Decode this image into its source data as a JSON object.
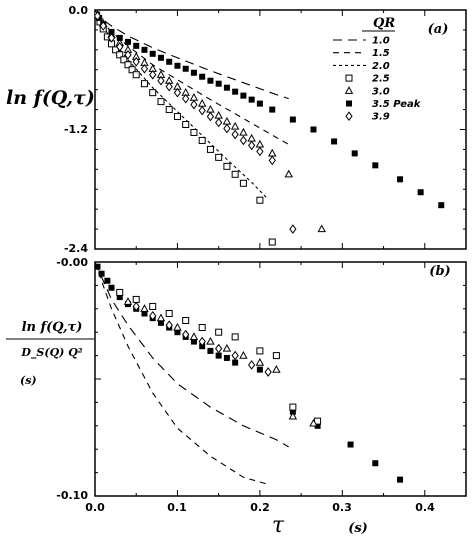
{
  "figure": {
    "xlabel": "τ",
    "xunit": "(s)",
    "x_ticks": [
      "0.0",
      "0.1",
      "0.2",
      "0.3",
      "0.4"
    ],
    "xlim": [
      0,
      0.45
    ]
  },
  "chart_data": [
    {
      "type": "scatter",
      "panel": "(a)",
      "ylabel": "ln f(Q,τ)",
      "ylim": [
        -2.4,
        0.0
      ],
      "y_ticks": [
        "0.0",
        "-1.2",
        "-2.4"
      ],
      "legend_title": "QR",
      "legend_position": "top-right",
      "series": [
        {
          "name": "1.0",
          "marker": "dash-long",
          "x": [
            0,
            0.005,
            0.01,
            0.02,
            0.04,
            0.07,
            0.1,
            0.14,
            0.18,
            0.22,
            0.235
          ],
          "y": [
            0,
            -0.06,
            -0.1,
            -0.16,
            -0.26,
            -0.38,
            -0.48,
            -0.61,
            -0.73,
            -0.85,
            -0.89
          ]
        },
        {
          "name": "1.5",
          "marker": "dash-med",
          "x": [
            0,
            0.005,
            0.01,
            0.02,
            0.04,
            0.07,
            0.1,
            0.14,
            0.18,
            0.22,
            0.235
          ],
          "y": [
            0,
            -0.08,
            -0.13,
            -0.22,
            -0.36,
            -0.55,
            -0.7,
            -0.9,
            -1.09,
            -1.28,
            -1.35
          ]
        },
        {
          "name": "2.0",
          "marker": "dash-short",
          "x": [
            0,
            0.005,
            0.01,
            0.02,
            0.04,
            0.07,
            0.1,
            0.13,
            0.16,
            0.19,
            0.21
          ],
          "y": [
            0,
            -0.1,
            -0.17,
            -0.29,
            -0.5,
            -0.78,
            -1.02,
            -1.26,
            -1.5,
            -1.73,
            -1.9
          ]
        },
        {
          "name": "2.5",
          "marker": "open-square",
          "x": [
            0.002,
            0.006,
            0.01,
            0.015,
            0.02,
            0.025,
            0.03,
            0.035,
            0.04,
            0.045,
            0.05,
            0.06,
            0.07,
            0.08,
            0.09,
            0.1,
            0.11,
            0.12,
            0.13,
            0.14,
            0.15,
            0.16,
            0.17,
            0.18,
            0.2,
            0.215
          ],
          "y": [
            -0.05,
            -0.12,
            -0.19,
            -0.27,
            -0.34,
            -0.4,
            -0.45,
            -0.5,
            -0.55,
            -0.6,
            -0.65,
            -0.74,
            -0.83,
            -0.92,
            -1.0,
            -1.07,
            -1.15,
            -1.23,
            -1.31,
            -1.4,
            -1.48,
            -1.57,
            -1.65,
            -1.74,
            -1.91,
            -2.33
          ]
        },
        {
          "name": "3.0",
          "marker": "open-triangle",
          "x": [
            0.003,
            0.01,
            0.02,
            0.03,
            0.04,
            0.05,
            0.06,
            0.07,
            0.08,
            0.09,
            0.1,
            0.11,
            0.12,
            0.13,
            0.14,
            0.15,
            0.16,
            0.17,
            0.18,
            0.19,
            0.2,
            0.215,
            0.235,
            0.275
          ],
          "y": [
            -0.05,
            -0.14,
            -0.25,
            -0.33,
            -0.4,
            -0.47,
            -0.53,
            -0.59,
            -0.65,
            -0.71,
            -0.77,
            -0.83,
            -0.88,
            -0.94,
            -1.0,
            -1.06,
            -1.12,
            -1.17,
            -1.23,
            -1.29,
            -1.35,
            -1.44,
            -1.65,
            -2.2
          ]
        },
        {
          "name": "3.5 Peak",
          "marker": "filled-square",
          "x": [
            0.005,
            0.01,
            0.02,
            0.03,
            0.04,
            0.05,
            0.06,
            0.07,
            0.08,
            0.09,
            0.1,
            0.11,
            0.12,
            0.13,
            0.14,
            0.15,
            0.16,
            0.17,
            0.18,
            0.19,
            0.2,
            0.215,
            0.24,
            0.265,
            0.29,
            0.315,
            0.34,
            0.37,
            0.395,
            0.42
          ],
          "y": [
            -0.08,
            -0.14,
            -0.22,
            -0.28,
            -0.32,
            -0.36,
            -0.4,
            -0.44,
            -0.48,
            -0.52,
            -0.56,
            -0.59,
            -0.63,
            -0.67,
            -0.71,
            -0.74,
            -0.78,
            -0.82,
            -0.86,
            -0.9,
            -0.94,
            -1.0,
            -1.1,
            -1.2,
            -1.32,
            -1.44,
            -1.56,
            -1.7,
            -1.83,
            -1.96
          ]
        },
        {
          "name": "3.9",
          "marker": "open-diamond",
          "x": [
            0.003,
            0.01,
            0.02,
            0.03,
            0.04,
            0.05,
            0.06,
            0.07,
            0.08,
            0.09,
            0.1,
            0.11,
            0.12,
            0.13,
            0.14,
            0.15,
            0.16,
            0.17,
            0.18,
            0.19,
            0.2,
            0.215,
            0.24
          ],
          "y": [
            -0.06,
            -0.16,
            -0.28,
            -0.37,
            -0.45,
            -0.52,
            -0.59,
            -0.65,
            -0.71,
            -0.77,
            -0.83,
            -0.89,
            -0.95,
            -1.01,
            -1.07,
            -1.13,
            -1.19,
            -1.25,
            -1.31,
            -1.36,
            -1.42,
            -1.51,
            -2.2
          ]
        }
      ]
    },
    {
      "type": "scatter",
      "panel": "(b)",
      "ylabel_num": "ln f(Q,τ)",
      "ylabel_den": "D_S(Q) Q²",
      "ylabel_unit": "(s)",
      "ylim": [
        -0.1,
        0.0
      ],
      "y_ticks": [
        "-0.00",
        "-0.10"
      ],
      "series": [
        {
          "name": "1.0",
          "marker": "dash-long",
          "x": [
            0,
            0.01,
            0.02,
            0.04,
            0.07,
            0.1,
            0.14,
            0.18,
            0.22,
            0.235
          ],
          "y": [
            0,
            -0.008,
            -0.016,
            -0.027,
            -0.041,
            -0.052,
            -0.062,
            -0.07,
            -0.076,
            -0.079
          ]
        },
        {
          "name": "1.5",
          "marker": "dash-med",
          "x": [
            0,
            0.01,
            0.02,
            0.04,
            0.07,
            0.1,
            0.14,
            0.18,
            0.21
          ],
          "y": [
            0,
            -0.01,
            -0.02,
            -0.036,
            -0.056,
            -0.071,
            -0.083,
            -0.092,
            -0.095
          ]
        },
        {
          "name": "3.5 Peak",
          "marker": "filled-square",
          "x": [
            0.003,
            0.008,
            0.015,
            0.02,
            0.03,
            0.04,
            0.05,
            0.06,
            0.07,
            0.08,
            0.09,
            0.1,
            0.11,
            0.12,
            0.13,
            0.14,
            0.15,
            0.16,
            0.17,
            0.2,
            0.24,
            0.27,
            0.31,
            0.34,
            0.37
          ],
          "y": [
            -0.002,
            -0.005,
            -0.008,
            -0.011,
            -0.015,
            -0.018,
            -0.02,
            -0.022,
            -0.024,
            -0.026,
            -0.028,
            -0.03,
            -0.032,
            -0.034,
            -0.036,
            -0.038,
            -0.04,
            -0.041,
            -0.043,
            -0.046,
            -0.064,
            -0.07,
            -0.078,
            -0.086,
            -0.093
          ]
        },
        {
          "name": "2.5",
          "marker": "open-square",
          "x": [
            0.03,
            0.05,
            0.07,
            0.09,
            0.11,
            0.13,
            0.15,
            0.17,
            0.2,
            0.22,
            0.24,
            0.27
          ],
          "y": [
            -0.013,
            -0.016,
            -0.019,
            -0.022,
            -0.025,
            -0.028,
            -0.03,
            -0.032,
            -0.038,
            -0.04,
            -0.062,
            -0.068
          ]
        },
        {
          "name": "3.0",
          "marker": "open-triangle",
          "x": [
            0.04,
            0.06,
            0.08,
            0.1,
            0.12,
            0.14,
            0.16,
            0.18,
            0.2,
            0.22,
            0.24,
            0.265
          ],
          "y": [
            -0.017,
            -0.02,
            -0.024,
            -0.028,
            -0.032,
            -0.034,
            -0.037,
            -0.04,
            -0.043,
            -0.046,
            -0.066,
            -0.069
          ]
        },
        {
          "name": "3.9",
          "marker": "open-diamond",
          "x": [
            0.05,
            0.07,
            0.09,
            0.11,
            0.13,
            0.15,
            0.17,
            0.19,
            0.21
          ],
          "y": [
            -0.019,
            -0.023,
            -0.027,
            -0.031,
            -0.034,
            -0.037,
            -0.04,
            -0.044,
            -0.047
          ]
        }
      ]
    }
  ]
}
